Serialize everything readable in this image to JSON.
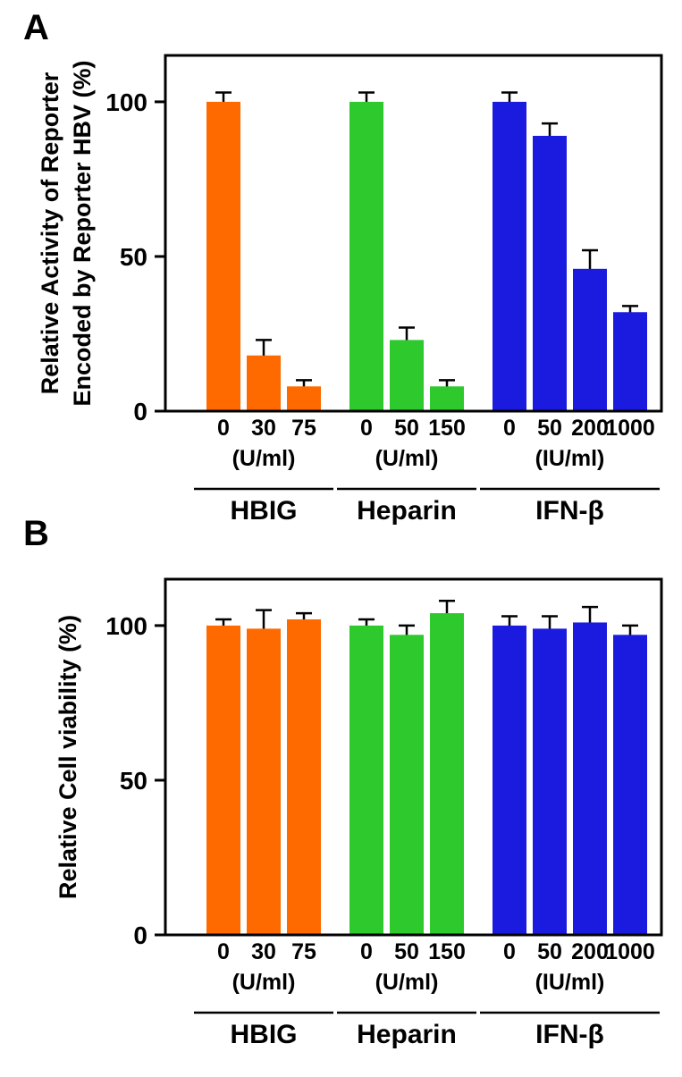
{
  "figure": {
    "background": "#ffffff",
    "axis_color": "#000000"
  },
  "chart_data": [
    {
      "type": "bar",
      "panel_label": "A",
      "title": "",
      "xlabel": "",
      "ylabel": "Relative Activity of Reporter Encoded by Reporter HBV (%)",
      "ylabel_lines": [
        "Relative Activity of Reporter",
        "Encoded by Reporter HBV (%)"
      ],
      "ylim": [
        0,
        115
      ],
      "yticks": [
        0,
        50,
        100
      ],
      "grid": false,
      "legend": "none",
      "groups": [
        {
          "name": "HBIG",
          "unit": "(U/ml)",
          "color": "#FF6A00",
          "categories": [
            "0",
            "30",
            "75"
          ],
          "values": [
            100,
            18,
            8
          ],
          "errors": [
            3,
            5,
            2
          ]
        },
        {
          "name": "Heparin",
          "unit": "(U/ml)",
          "color": "#2DC92D",
          "categories": [
            "0",
            "50",
            "150"
          ],
          "values": [
            100,
            23,
            8
          ],
          "errors": [
            3,
            4,
            2
          ]
        },
        {
          "name": "IFN-β",
          "unit": "(IU/ml)",
          "color": "#1B1BE0",
          "categories": [
            "0",
            "50",
            "200",
            "1000"
          ],
          "values": [
            100,
            89,
            46,
            32
          ],
          "errors": [
            3,
            4,
            6,
            2
          ]
        }
      ]
    },
    {
      "type": "bar",
      "panel_label": "B",
      "title": "",
      "xlabel": "",
      "ylabel": "Relative Cell viability (%)",
      "ylabel_lines": [
        "Relative Cell viability (%)"
      ],
      "ylim": [
        0,
        115
      ],
      "yticks": [
        0,
        50,
        100
      ],
      "grid": false,
      "legend": "none",
      "groups": [
        {
          "name": "HBIG",
          "unit": "(U/ml)",
          "color": "#FF6A00",
          "categories": [
            "0",
            "30",
            "75"
          ],
          "values": [
            100,
            99,
            102
          ],
          "errors": [
            2,
            6,
            2
          ]
        },
        {
          "name": "Heparin",
          "unit": "(U/ml)",
          "color": "#2DC92D",
          "categories": [
            "0",
            "50",
            "150"
          ],
          "values": [
            100,
            97,
            104
          ],
          "errors": [
            2,
            3,
            4
          ]
        },
        {
          "name": "IFN-β",
          "unit": "(IU/ml)",
          "color": "#1B1BE0",
          "categories": [
            "0",
            "50",
            "200",
            "1000"
          ],
          "values": [
            100,
            99,
            101,
            97
          ],
          "errors": [
            3,
            4,
            5,
            3
          ]
        }
      ]
    }
  ]
}
